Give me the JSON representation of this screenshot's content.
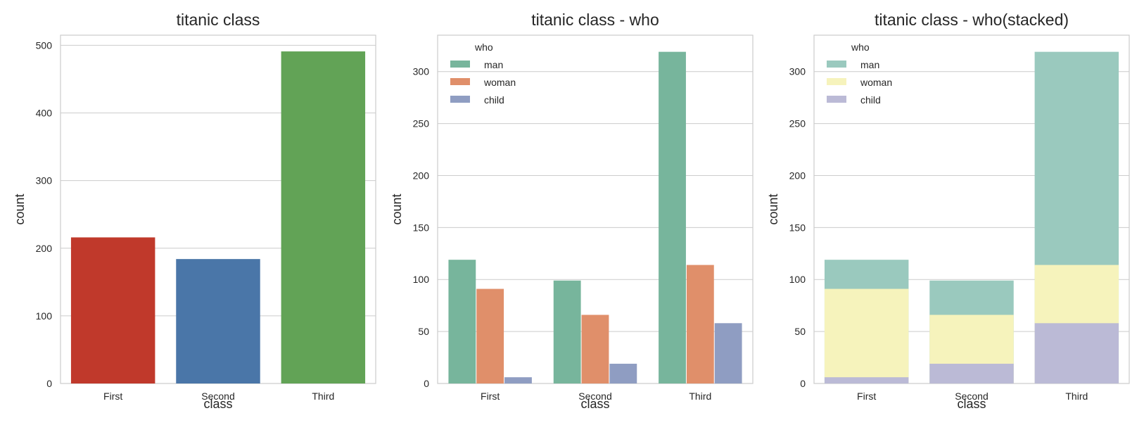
{
  "chart_data": [
    {
      "type": "bar",
      "title": "titanic class",
      "xlabel": "class",
      "ylabel": "count",
      "categories": [
        "First",
        "Second",
        "Third"
      ],
      "values": [
        216,
        184,
        491
      ],
      "colors": [
        "#c0392b",
        "#4a76a8",
        "#62a356"
      ],
      "ylim": [
        0,
        515
      ],
      "yticks": [
        0,
        100,
        200,
        300,
        400,
        500
      ],
      "grid": true,
      "legend": null
    },
    {
      "type": "bar",
      "title": "titanic class - who",
      "xlabel": "class",
      "ylabel": "count",
      "categories": [
        "First",
        "Second",
        "Third"
      ],
      "series": [
        {
          "name": "man",
          "values": [
            119,
            99,
            319
          ],
          "color": "#77b59c"
        },
        {
          "name": "woman",
          "values": [
            91,
            66,
            114
          ],
          "color": "#e08f6a"
        },
        {
          "name": "child",
          "values": [
            6,
            19,
            58
          ],
          "color": "#8f9dc2"
        }
      ],
      "legend_title": "who",
      "legend_position": "top-left",
      "ylim": [
        0,
        335
      ],
      "yticks": [
        0,
        50,
        100,
        150,
        200,
        250,
        300
      ],
      "grid": true
    },
    {
      "type": "bar",
      "stacked": true,
      "title": "titanic class - who(stacked)",
      "xlabel": "class",
      "ylabel": "count",
      "categories": [
        "First",
        "Second",
        "Third"
      ],
      "series": [
        {
          "name": "man",
          "values": [
            119,
            99,
            319
          ],
          "color": "#9ac9be"
        },
        {
          "name": "woman",
          "values": [
            91,
            66,
            114
          ],
          "color": "#f6f3bc"
        },
        {
          "name": "child",
          "values": [
            6,
            19,
            58
          ],
          "color": "#bbbad6"
        }
      ],
      "stack_mode": "overlay",
      "legend_title": "who",
      "legend_position": "top-left",
      "ylim": [
        0,
        335
      ],
      "yticks": [
        0,
        50,
        100,
        150,
        200,
        250,
        300
      ],
      "grid": true
    }
  ]
}
